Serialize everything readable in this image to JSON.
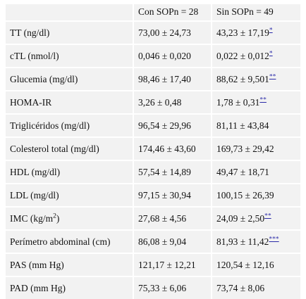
{
  "headers": [
    "",
    "Con SOPn = 28",
    "Sin SOPn = 49"
  ],
  "rows": [
    {
      "label": "TT (ng/dl)",
      "con": "73,00 ± 24,73",
      "sin": "43,23 ± 17,19",
      "note": "*"
    },
    {
      "label": "cTL (nmol/l)",
      "con": "0,046 ± 0,020",
      "sin": "0,022 ± 0,012",
      "note": "*"
    },
    {
      "label": "Glucemia (mg/dl)",
      "con": "98,46 ± 17,40",
      "sin": "88,62 ± 9,501",
      "note": "**"
    },
    {
      "label": "HOMA-IR",
      "con": "3,26 ± 0,48",
      "sin": "1,78 ± 0,31",
      "note": "**"
    },
    {
      "label": "Triglicéridos (mg/dl)",
      "con": "96,54 ± 29,96",
      "sin": "81,11 ± 43,84",
      "note": ""
    },
    {
      "label": "Colesterol total (mg/dl)",
      "con": "174,46 ± 43,60",
      "sin": "169,73 ± 29,42",
      "note": ""
    },
    {
      "label": "HDL (mg/dl)",
      "con": "57,54 ± 14,89",
      "sin": "49,47 ± 18,71",
      "note": ""
    },
    {
      "label": "LDL (mg/dl)",
      "con": "97,15 ± 30,94",
      "sin": "100,15 ± 26,39",
      "note": ""
    },
    {
      "label": "IMC (kg/m",
      "label_sup": "2",
      "label_tail": ")",
      "con": "27,68 ± 4,56",
      "sin": "24,09 ± 2,50",
      "note": "**"
    },
    {
      "label": "Perímetro abdominal (cm)",
      "con": "86,08 ± 9,04",
      "sin": "81,93 ± 11,42",
      "note": "***"
    },
    {
      "label": "PAS (mm Hg)",
      "con": "121,17 ± 12,21",
      "sin": "120,54 ± 12,16",
      "note": ""
    },
    {
      "label": "PAD (mm Hg)",
      "con": "75,33 ± 6,06",
      "sin": "73,74 ± 8,06",
      "note": ""
    }
  ]
}
